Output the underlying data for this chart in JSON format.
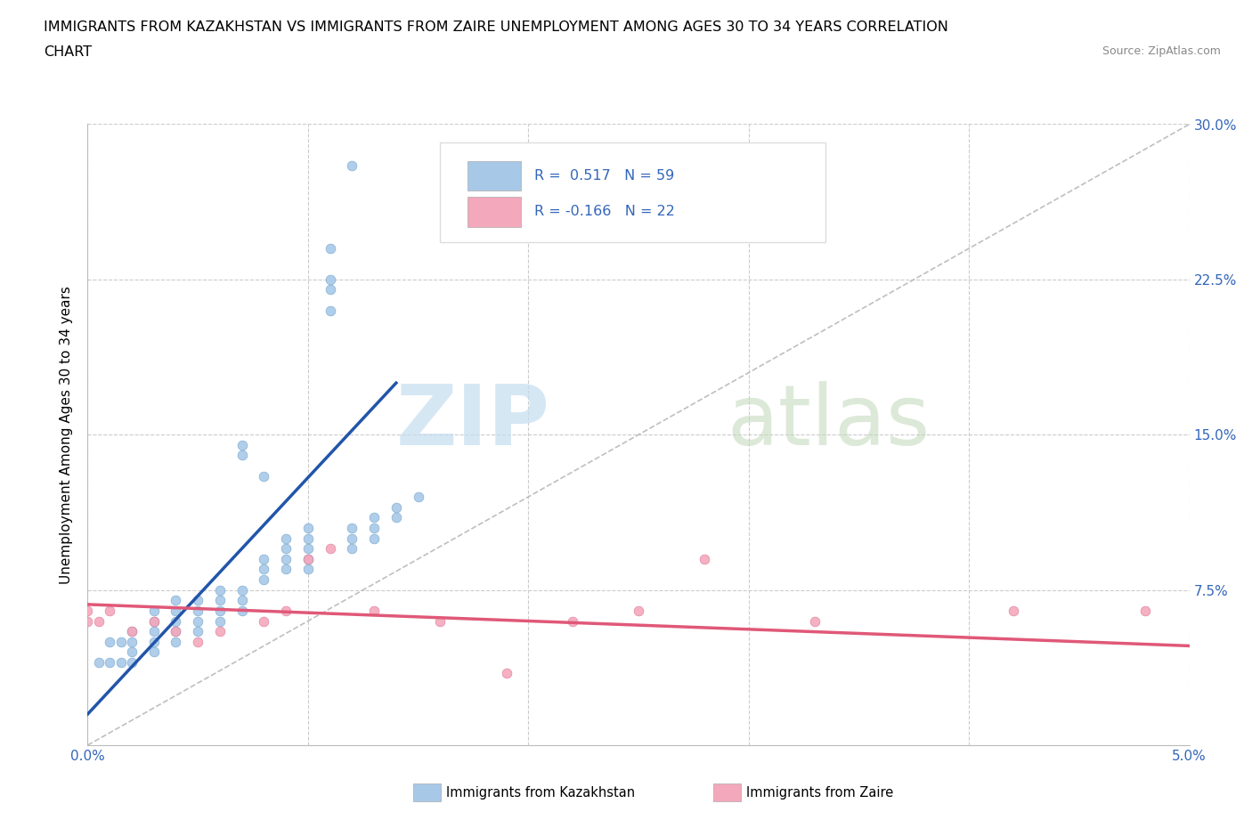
{
  "title_line1": "IMMIGRANTS FROM KAZAKHSTAN VS IMMIGRANTS FROM ZAIRE UNEMPLOYMENT AMONG AGES 30 TO 34 YEARS CORRELATION",
  "title_line2": "CHART",
  "source": "Source: ZipAtlas.com",
  "ylabel": "Unemployment Among Ages 30 to 34 years",
  "xmin": 0.0,
  "xmax": 0.05,
  "ymin": 0.0,
  "ymax": 0.3,
  "x_ticks": [
    0.0,
    0.01,
    0.02,
    0.03,
    0.04,
    0.05
  ],
  "x_tick_labels": [
    "0.0%",
    "",
    "",
    "",
    "",
    "5.0%"
  ],
  "y_ticks": [
    0.0,
    0.075,
    0.15,
    0.225,
    0.3
  ],
  "y_tick_labels": [
    "",
    "7.5%",
    "15.0%",
    "22.5%",
    "30.0%"
  ],
  "kazakhstan_color": "#a8c8e8",
  "zaire_color": "#f4a8bc",
  "kazakhstan_line_color": "#2255aa",
  "zaire_line_color": "#e05878",
  "diagonal_color": "#b8b8b8",
  "R_kazakhstan": 0.517,
  "N_kazakhstan": 59,
  "R_zaire": -0.166,
  "N_zaire": 22,
  "legend_label_1": "Immigrants from Kazakhstan",
  "legend_label_2": "Immigrants from Zaire",
  "watermark_zip": "ZIP",
  "watermark_atlas": "atlas",
  "kazakhstan_x": [
    0.0005,
    0.001,
    0.001,
    0.0015,
    0.0015,
    0.002,
    0.002,
    0.002,
    0.002,
    0.003,
    0.003,
    0.003,
    0.003,
    0.003,
    0.004,
    0.004,
    0.004,
    0.004,
    0.004,
    0.005,
    0.005,
    0.005,
    0.005,
    0.006,
    0.006,
    0.006,
    0.006,
    0.007,
    0.007,
    0.007,
    0.007,
    0.007,
    0.008,
    0.008,
    0.008,
    0.008,
    0.009,
    0.009,
    0.009,
    0.009,
    0.01,
    0.01,
    0.01,
    0.01,
    0.01,
    0.011,
    0.011,
    0.011,
    0.011,
    0.012,
    0.012,
    0.012,
    0.012,
    0.013,
    0.013,
    0.013,
    0.014,
    0.014,
    0.015
  ],
  "kazakhstan_y": [
    0.04,
    0.04,
    0.05,
    0.04,
    0.05,
    0.04,
    0.045,
    0.05,
    0.055,
    0.045,
    0.05,
    0.055,
    0.06,
    0.065,
    0.05,
    0.055,
    0.06,
    0.065,
    0.07,
    0.055,
    0.06,
    0.065,
    0.07,
    0.06,
    0.065,
    0.07,
    0.075,
    0.065,
    0.07,
    0.075,
    0.14,
    0.145,
    0.08,
    0.085,
    0.09,
    0.13,
    0.085,
    0.09,
    0.095,
    0.1,
    0.085,
    0.09,
    0.095,
    0.1,
    0.105,
    0.22,
    0.225,
    0.21,
    0.24,
    0.095,
    0.1,
    0.105,
    0.28,
    0.1,
    0.105,
    0.11,
    0.11,
    0.115,
    0.12
  ],
  "zaire_x": [
    0.0,
    0.0,
    0.0005,
    0.001,
    0.002,
    0.003,
    0.004,
    0.005,
    0.006,
    0.008,
    0.009,
    0.01,
    0.011,
    0.013,
    0.016,
    0.019,
    0.022,
    0.025,
    0.028,
    0.033,
    0.042,
    0.048
  ],
  "zaire_y": [
    0.06,
    0.065,
    0.06,
    0.065,
    0.055,
    0.06,
    0.055,
    0.05,
    0.055,
    0.06,
    0.065,
    0.09,
    0.095,
    0.065,
    0.06,
    0.035,
    0.06,
    0.065,
    0.09,
    0.06,
    0.065,
    0.065
  ],
  "kaz_line_x0": 0.0,
  "kaz_line_y0": 0.015,
  "kaz_line_x1": 0.014,
  "kaz_line_y1": 0.175,
  "zaire_line_x0": 0.0,
  "zaire_line_y0": 0.068,
  "zaire_line_x1": 0.05,
  "zaire_line_y1": 0.048
}
